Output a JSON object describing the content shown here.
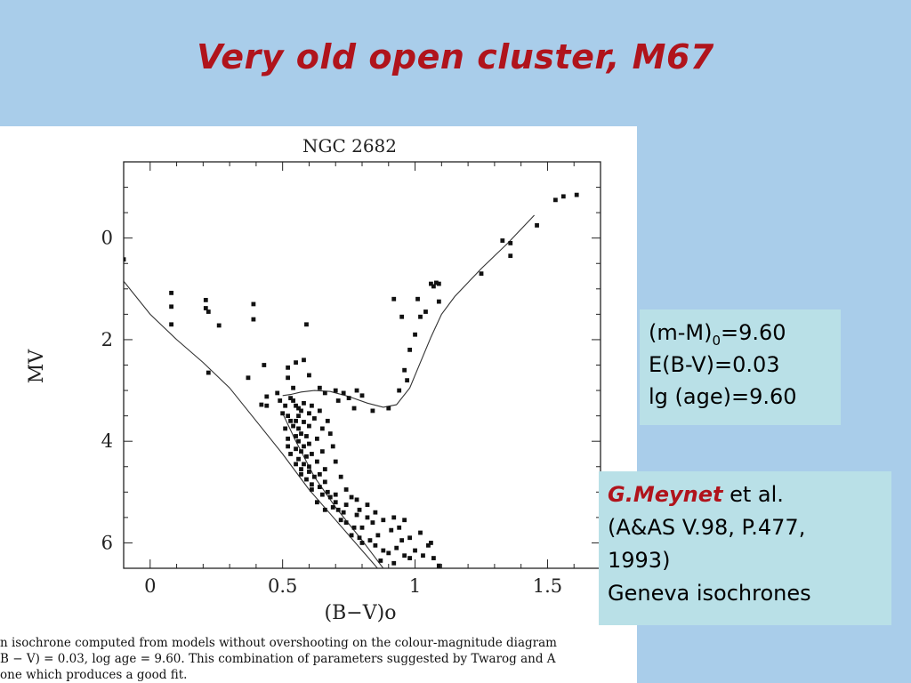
{
  "slide": {
    "title": "Very old open cluster, M67"
  },
  "params_box": {
    "line1_prefix": "(m-M)",
    "line1_sub": "0",
    "line1_suffix": "=9.60",
    "line2": "E(B-V)=0.03",
    "line3": "lg (age)=9.60"
  },
  "ref_box": {
    "author": "G.Meynet",
    "author_suffix": " et al.",
    "citation1": "(A&AS V.98, P.477,",
    "citation2": "1993)",
    "note": "Geneva isochrones"
  },
  "caption": {
    "line1": "n isochrone computed from models without overshooting on the colour-magnitude diagram",
    "line2": "B − V) = 0.03, log age = 9.60. This combination of parameters suggested by Twarog and A",
    "line3": "one which produces a good fit."
  },
  "chart_data": {
    "type": "scatter",
    "title": "NGC 2682",
    "xlabel": "(B−V)o",
    "ylabel": "MV",
    "xlim": [
      -0.1,
      1.7
    ],
    "ylim": [
      6.5,
      -1.5
    ],
    "y_inverted": true,
    "xticks": [
      0,
      0.5,
      1,
      1.5
    ],
    "xtick_labels": [
      "0",
      "0.5",
      "1",
      "1.5"
    ],
    "yticks": [
      0,
      2,
      4,
      6
    ],
    "ytick_labels": [
      "0",
      "2",
      "4",
      "6"
    ],
    "grid": false,
    "legend": "none",
    "series": [
      {
        "kind": "isochrone",
        "points": [
          [
            -0.1,
            0.85
          ],
          [
            0.0,
            1.5
          ],
          [
            0.1,
            2.0
          ],
          [
            0.2,
            2.45
          ],
          [
            0.3,
            2.95
          ],
          [
            0.4,
            3.6
          ],
          [
            0.5,
            4.25
          ],
          [
            0.6,
            4.95
          ],
          [
            0.7,
            5.55
          ],
          [
            0.8,
            6.15
          ],
          [
            0.9,
            6.75
          ]
        ]
      },
      {
        "kind": "isochrone-turnoff-branch",
        "points": [
          [
            0.5,
            3.1
          ],
          [
            0.53,
            3.08
          ],
          [
            0.57,
            3.03
          ],
          [
            0.62,
            3.0
          ],
          [
            0.68,
            3.02
          ],
          [
            0.75,
            3.12
          ],
          [
            0.82,
            3.25
          ],
          [
            0.88,
            3.33
          ],
          [
            0.93,
            3.28
          ],
          [
            0.98,
            2.95
          ],
          [
            1.02,
            2.45
          ],
          [
            1.06,
            1.95
          ],
          [
            1.1,
            1.5
          ],
          [
            1.15,
            1.15
          ],
          [
            1.25,
            0.6
          ],
          [
            1.35,
            0.1
          ],
          [
            1.45,
            -0.45
          ]
        ]
      },
      {
        "kind": "isochrone-binary",
        "points": [
          [
            0.5,
            3.45
          ],
          [
            0.55,
            4.0
          ],
          [
            0.62,
            4.7
          ],
          [
            0.7,
            5.3
          ],
          [
            0.8,
            5.95
          ],
          [
            0.88,
            6.5
          ]
        ]
      },
      {
        "kind": "stars",
        "points": [
          [
            -0.1,
            0.42
          ],
          [
            0.08,
            1.08
          ],
          [
            0.08,
            1.35
          ],
          [
            0.08,
            1.7
          ],
          [
            0.21,
            1.22
          ],
          [
            0.21,
            1.38
          ],
          [
            0.22,
            1.45
          ],
          [
            0.26,
            1.72
          ],
          [
            0.39,
            1.3
          ],
          [
            0.39,
            1.6
          ],
          [
            0.59,
            1.7
          ],
          [
            0.22,
            2.65
          ],
          [
            0.37,
            2.75
          ],
          [
            0.43,
            2.5
          ],
          [
            0.44,
            3.12
          ],
          [
            0.42,
            3.28
          ],
          [
            0.44,
            3.3
          ],
          [
            0.48,
            3.05
          ],
          [
            0.49,
            3.2
          ],
          [
            0.52,
            2.55
          ],
          [
            0.52,
            2.75
          ],
          [
            0.54,
            2.95
          ],
          [
            0.55,
            2.45
          ],
          [
            0.58,
            2.4
          ],
          [
            0.6,
            2.7
          ],
          [
            0.64,
            2.95
          ],
          [
            0.66,
            3.05
          ],
          [
            0.7,
            3.0
          ],
          [
            0.73,
            3.05
          ],
          [
            0.77,
            3.35
          ],
          [
            0.8,
            3.1
          ],
          [
            0.84,
            3.4
          ],
          [
            0.9,
            3.35
          ],
          [
            0.78,
            3.0
          ],
          [
            0.75,
            3.15
          ],
          [
            0.71,
            3.2
          ],
          [
            0.94,
            3.0
          ],
          [
            0.96,
            2.6
          ],
          [
            0.98,
            2.2
          ],
          [
            0.97,
            2.8
          ],
          [
            1.0,
            1.9
          ],
          [
            1.02,
            1.55
          ],
          [
            1.04,
            1.45
          ],
          [
            1.07,
            0.95
          ],
          [
            1.08,
            0.88
          ],
          [
            1.09,
            0.9
          ],
          [
            1.09,
            1.25
          ],
          [
            1.06,
            0.9
          ],
          [
            0.92,
            1.2
          ],
          [
            1.01,
            1.2
          ],
          [
            0.95,
            1.55
          ],
          [
            1.25,
            0.7
          ],
          [
            1.33,
            0.05
          ],
          [
            1.36,
            0.1
          ],
          [
            1.36,
            0.35
          ],
          [
            1.46,
            -0.25
          ],
          [
            1.53,
            -0.75
          ],
          [
            1.56,
            -0.82
          ],
          [
            1.61,
            -0.85
          ],
          [
            0.54,
            3.2
          ],
          [
            0.55,
            3.3
          ],
          [
            0.56,
            3.35
          ],
          [
            0.57,
            3.4
          ],
          [
            0.56,
            3.5
          ],
          [
            0.55,
            3.6
          ],
          [
            0.54,
            3.7
          ],
          [
            0.56,
            3.75
          ],
          [
            0.57,
            3.85
          ],
          [
            0.55,
            3.9
          ],
          [
            0.56,
            4.0
          ],
          [
            0.58,
            4.1
          ],
          [
            0.55,
            4.15
          ],
          [
            0.57,
            4.2
          ],
          [
            0.59,
            4.3
          ],
          [
            0.56,
            4.35
          ],
          [
            0.58,
            4.45
          ],
          [
            0.6,
            4.5
          ],
          [
            0.57,
            4.55
          ],
          [
            0.6,
            4.6
          ],
          [
            0.62,
            4.7
          ],
          [
            0.59,
            4.75
          ],
          [
            0.61,
            4.85
          ],
          [
            0.64,
            4.9
          ],
          [
            0.6,
            3.45
          ],
          [
            0.62,
            3.55
          ],
          [
            0.6,
            3.7
          ],
          [
            0.63,
            3.95
          ],
          [
            0.65,
            4.2
          ],
          [
            0.66,
            4.55
          ],
          [
            0.52,
            3.5
          ],
          [
            0.51,
            3.75
          ],
          [
            0.52,
            3.95
          ],
          [
            0.53,
            4.25
          ],
          [
            0.5,
            3.45
          ],
          [
            0.58,
            3.62
          ],
          [
            0.59,
            3.9
          ],
          [
            0.6,
            4.05
          ],
          [
            0.61,
            4.25
          ],
          [
            0.63,
            4.4
          ],
          [
            0.64,
            4.65
          ],
          [
            0.66,
            4.8
          ],
          [
            0.67,
            5.0
          ],
          [
            0.65,
            5.05
          ],
          [
            0.68,
            5.1
          ],
          [
            0.7,
            5.2
          ],
          [
            0.69,
            5.3
          ],
          [
            0.71,
            5.35
          ],
          [
            0.73,
            5.4
          ],
          [
            0.72,
            5.55
          ],
          [
            0.74,
            5.6
          ],
          [
            0.77,
            5.7
          ],
          [
            0.76,
            5.85
          ],
          [
            0.79,
            5.9
          ],
          [
            0.8,
            6.0
          ],
          [
            0.78,
            5.45
          ],
          [
            0.82,
            5.5
          ],
          [
            0.84,
            5.6
          ],
          [
            0.86,
            5.85
          ],
          [
            0.85,
            6.05
          ],
          [
            0.88,
            6.15
          ],
          [
            0.9,
            6.2
          ],
          [
            0.93,
            6.1
          ],
          [
            0.96,
            6.25
          ],
          [
            0.98,
            6.3
          ],
          [
            1.0,
            6.15
          ],
          [
            1.03,
            6.25
          ],
          [
            1.05,
            6.05
          ],
          [
            1.07,
            6.3
          ],
          [
            1.09,
            6.45
          ],
          [
            0.63,
            5.2
          ],
          [
            0.66,
            5.35
          ],
          [
            0.7,
            5.05
          ],
          [
            0.74,
            5.25
          ],
          [
            0.78,
            5.15
          ],
          [
            0.8,
            5.7
          ],
          [
            0.83,
            5.95
          ],
          [
            0.87,
            6.35
          ],
          [
            0.92,
            6.4
          ],
          [
            0.95,
            5.95
          ],
          [
            0.57,
            4.65
          ],
          [
            0.61,
            4.95
          ],
          [
            0.55,
            4.45
          ],
          [
            0.52,
            4.1
          ],
          [
            0.53,
            3.6
          ],
          [
            0.51,
            3.3
          ],
          [
            0.53,
            3.15
          ],
          [
            0.58,
            3.25
          ],
          [
            0.61,
            3.3
          ],
          [
            0.64,
            3.4
          ],
          [
            0.67,
            3.6
          ],
          [
            0.68,
            3.85
          ],
          [
            0.65,
            3.75
          ],
          [
            0.69,
            4.1
          ],
          [
            0.7,
            4.4
          ],
          [
            0.72,
            4.7
          ],
          [
            0.74,
            4.95
          ],
          [
            0.76,
            5.1
          ],
          [
            0.79,
            5.35
          ],
          [
            0.82,
            5.25
          ],
          [
            0.85,
            5.4
          ],
          [
            0.88,
            5.55
          ],
          [
            0.91,
            5.75
          ],
          [
            0.94,
            5.7
          ],
          [
            0.98,
            5.9
          ],
          [
            1.02,
            5.8
          ],
          [
            1.06,
            6.0
          ],
          [
            0.92,
            5.5
          ],
          [
            0.96,
            5.55
          ]
        ]
      }
    ]
  }
}
